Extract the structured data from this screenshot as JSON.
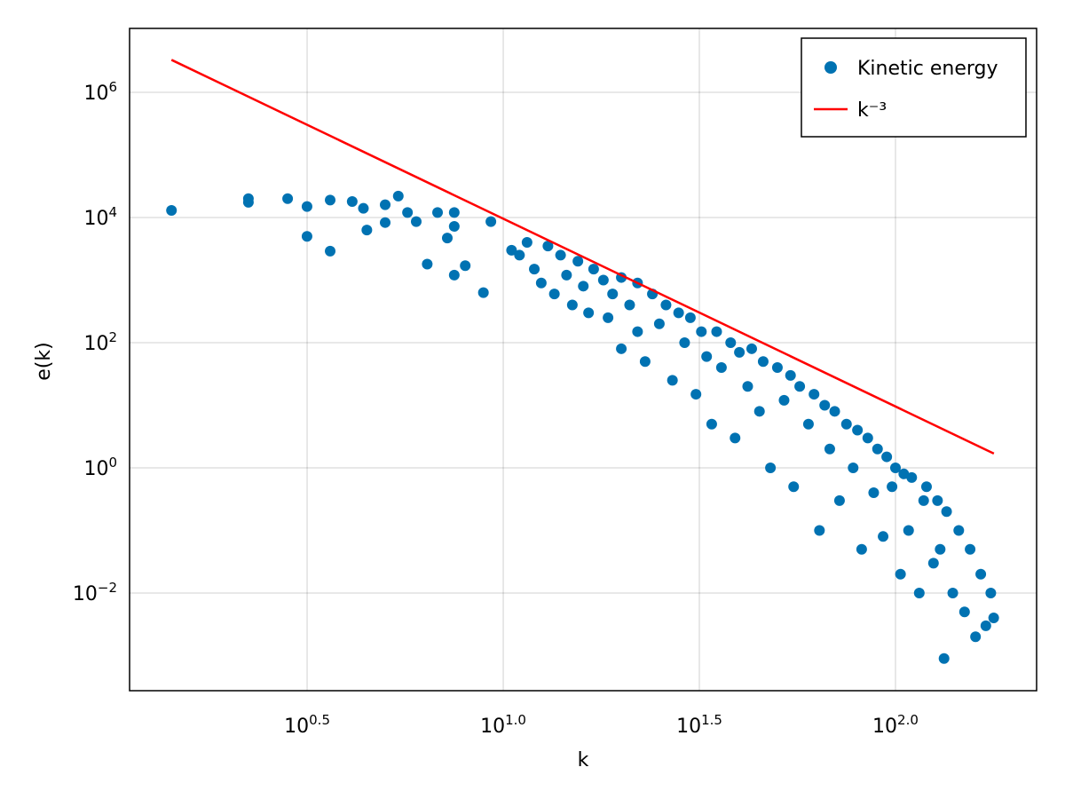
{
  "chart_data": {
    "type": "scatter",
    "x_label": "k",
    "y_label": "e(k)",
    "xscale": "log",
    "yscale": "log",
    "xlim": [
      1.115,
      229
    ],
    "ylim": [
      0.000275,
      10500000
    ],
    "xticks": [
      {
        "value": 3.16228,
        "label": "10",
        "superscript": "0.5"
      },
      {
        "value": 10,
        "label": "10",
        "superscript": "1.0"
      },
      {
        "value": 31.6228,
        "label": "10",
        "superscript": "1.5"
      },
      {
        "value": 100,
        "label": "10",
        "superscript": "2.0"
      }
    ],
    "yticks": [
      {
        "value": 0.01,
        "label": "10",
        "superscript": "−2"
      },
      {
        "value": 1,
        "label": "10",
        "superscript": "0"
      },
      {
        "value": 100,
        "label": "10",
        "superscript": "2"
      },
      {
        "value": 10000,
        "label": "10",
        "superscript": "4"
      },
      {
        "value": 1000000,
        "label": "10",
        "superscript": "6"
      }
    ],
    "grid": true,
    "legend": "top-right",
    "series": [
      {
        "name": "Kinetic energy",
        "type": "scatter",
        "color": "#0072b2",
        "x": [
          1.426,
          2.24,
          2.24,
          2.82,
          3.16,
          3.16,
          3.62,
          3.62,
          4.12,
          4.4,
          4.49,
          5.0,
          5.0,
          5.4,
          5.7,
          6.0,
          6.4,
          6.8,
          7.2,
          7.5,
          7.5,
          7.5,
          8.0,
          8.9,
          9.3,
          10.5,
          11,
          11.5,
          12,
          12.5,
          13,
          13.5,
          14,
          14.5,
          15,
          15.5,
          16,
          16.5,
          17,
          18,
          18.5,
          19,
          20,
          20,
          21,
          22,
          22,
          23,
          24,
          25,
          26,
          27,
          28,
          29,
          30,
          31,
          32,
          33,
          34,
          35,
          36,
          38,
          39,
          40,
          42,
          43,
          45,
          46,
          48,
          50,
          52,
          54,
          55,
          57,
          60,
          62,
          64,
          66,
          68,
          70,
          72,
          75,
          78,
          80,
          82,
          85,
          88,
          90,
          93,
          95,
          98,
          100,
          103,
          105,
          108,
          110,
          115,
          118,
          120,
          125,
          128,
          130,
          133,
          135,
          140,
          145,
          150,
          155,
          160,
          165,
          170,
          175,
          178
        ],
        "values": [
          13000,
          20000,
          17500,
          20000,
          15000,
          5000,
          19000,
          2900,
          18000,
          14000,
          6300,
          16000,
          8300,
          22000,
          12000,
          8600,
          1800,
          12000,
          4700,
          12000,
          7200,
          1200,
          1700,
          630,
          8600,
          3000,
          2500,
          4000,
          1500,
          900,
          3500,
          600,
          2500,
          1200,
          400,
          2000,
          800,
          300,
          1500,
          1000,
          250,
          600,
          1100,
          80,
          400,
          900,
          150,
          50,
          600,
          200,
          400,
          25,
          300,
          100,
          250,
          15,
          150,
          60,
          5,
          150,
          40,
          100,
          3,
          70,
          20,
          80,
          8,
          50,
          1,
          40,
          12,
          30,
          0.5,
          20,
          5,
          15,
          0.1,
          10,
          2,
          8,
          0.3,
          5,
          1,
          4,
          0.05,
          3,
          0.4,
          2,
          0.08,
          1.5,
          0.5,
          1,
          0.02,
          0.8,
          0.1,
          0.7,
          0.01,
          0.3,
          0.5,
          0.03,
          0.3,
          0.05,
          0.0009,
          0.2,
          0.01,
          0.1,
          0.005,
          0.05,
          0.002,
          0.02,
          0.003,
          0.01,
          0.004
        ]
      },
      {
        "name": "k⁻³",
        "type": "line",
        "color": "#ff0000",
        "x": [
          1.426,
          178.2
        ],
        "values": [
          3300000,
          1.69
        ]
      }
    ]
  }
}
